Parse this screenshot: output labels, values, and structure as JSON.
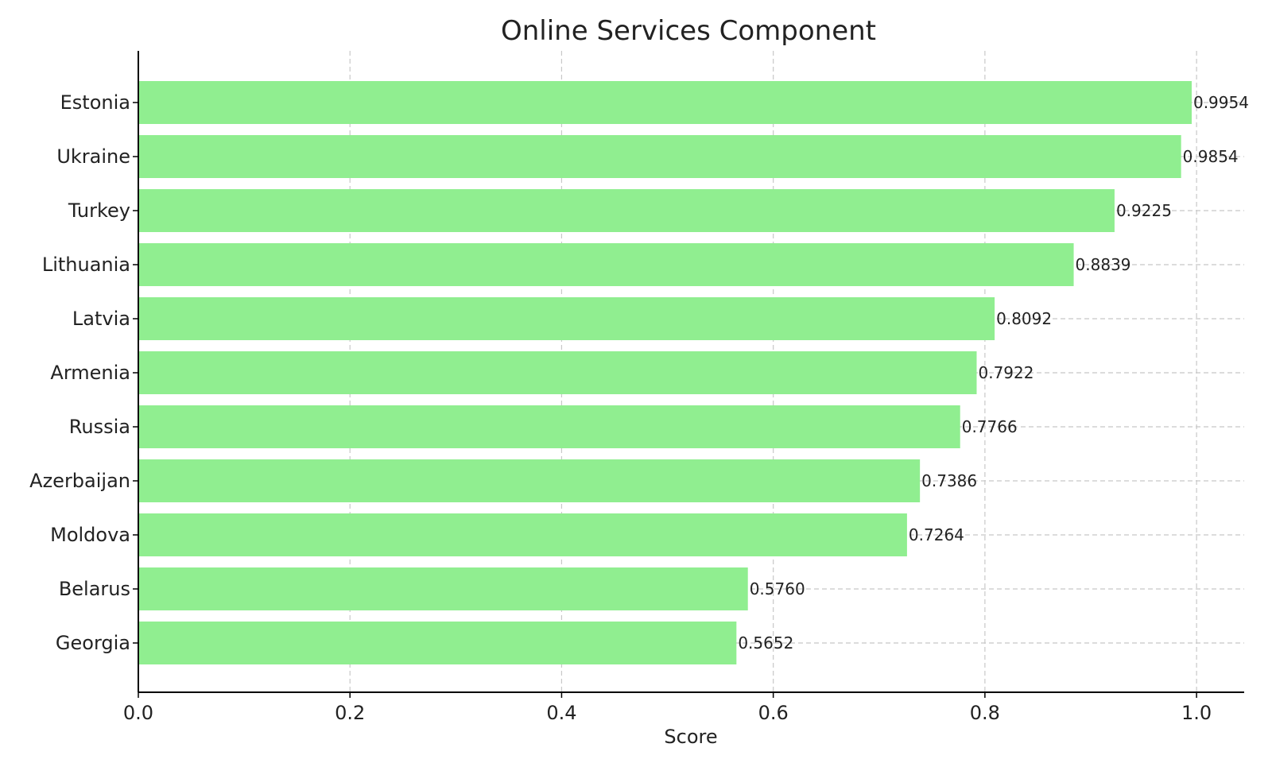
{
  "chart_data": {
    "type": "bar",
    "orientation": "horizontal",
    "title": "Online Services Component",
    "xlabel": "Score",
    "ylabel": "",
    "xlim": [
      0,
      1.045
    ],
    "xticks": [
      "0.0",
      "0.2",
      "0.4",
      "0.6",
      "0.8",
      "1.0"
    ],
    "grid": true,
    "bar_color": "#90ee90",
    "categories": [
      "Estonia",
      "Ukraine",
      "Turkey",
      "Lithuania",
      "Latvia",
      "Armenia",
      "Russia",
      "Azerbaijan",
      "Moldova",
      "Belarus",
      "Georgia"
    ],
    "values": [
      0.9954,
      0.9854,
      0.9225,
      0.8839,
      0.8092,
      0.7922,
      0.7766,
      0.7386,
      0.7264,
      0.576,
      0.5652
    ],
    "value_labels": [
      "0.9954",
      "0.9854",
      "0.9225",
      "0.8839",
      "0.8092",
      "0.7922",
      "0.7766",
      "0.7386",
      "0.7264",
      "0.5760",
      "0.5652"
    ]
  }
}
